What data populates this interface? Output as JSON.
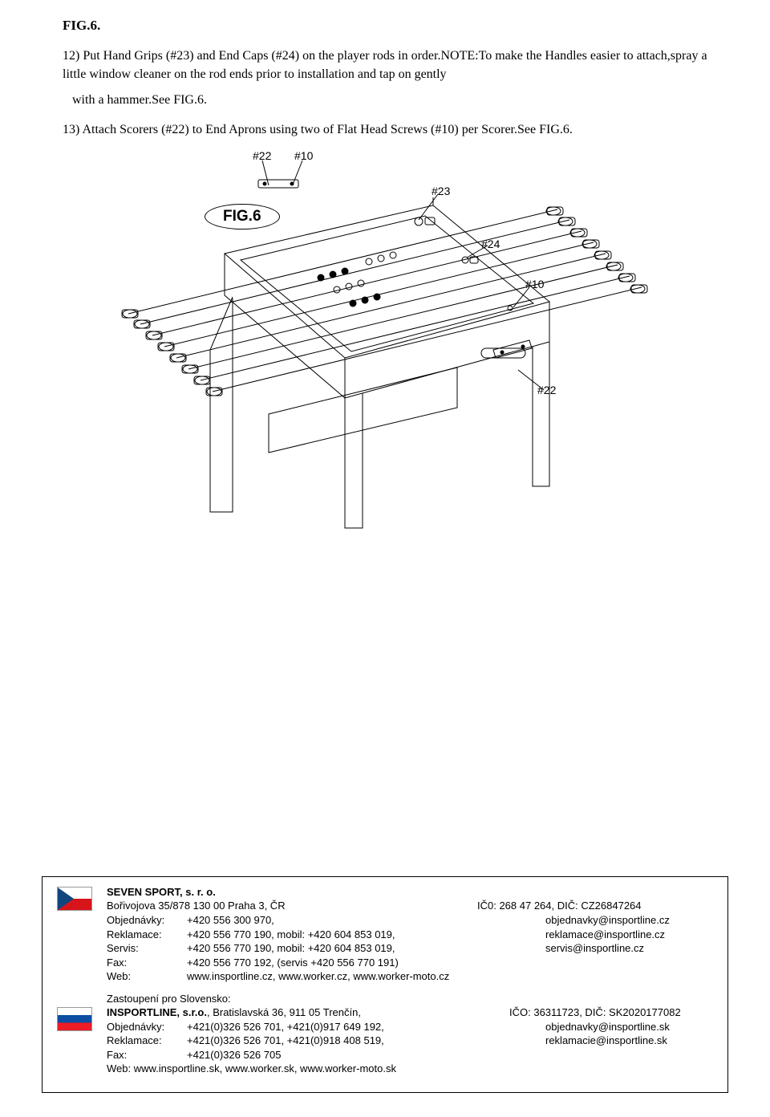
{
  "header": {
    "fig": "FIG.6."
  },
  "instructions": {
    "step12": "12) Put Hand Grips (#23) and End Caps (#24) on the player rods in order.NOTE:To make the Handles easier to attach,spray a little window cleaner on the rod ends prior to installation and tap on gently",
    "withHammer": "with a hammer.See FIG.6.",
    "step13": "13) Attach Scorers (#22) to End Aprons using two of Flat Head Screws (#10) per Scorer.See FIG.6."
  },
  "diagram": {
    "labels": {
      "l22a": "#22",
      "l10a": "#10",
      "l23": "#23",
      "fig6": "FIG.6",
      "l24": "#24",
      "l10b": "#10",
      "l22b": "#22"
    },
    "style": {
      "stroke": "#000000",
      "strokeWidth": 1,
      "fill": "none",
      "figBadgeBorder": "#000000",
      "labelFontSize": 14
    }
  },
  "contact": {
    "cz": {
      "company": "SEVEN SPORT, s. r. o.",
      "addr": "Bořivojova 35/878 130 00  Praha 3, ČR",
      "ico": "IČ0: 268 47 264, DIČ: CZ26847264",
      "rows": [
        {
          "lab": "Objednávky:",
          "mid": "+420 556 300 970,",
          "rgt": "objednavky@insportline.cz"
        },
        {
          "lab": "Reklamace:",
          "mid": "+420 556 770 190,  mobil: +420 604 853 019,",
          "rgt": "reklamace@insportline.cz"
        },
        {
          "lab": "Servis:",
          "mid": "+420 556 770 190,  mobil: +420 604 853 019,",
          "rgt": "servis@insportline.cz"
        },
        {
          "lab": "Fax:",
          "mid": "+420 556 770 192, (servis +420 556 770 191)",
          "rgt": ""
        },
        {
          "lab": "Web:",
          "mid": "www.insportline.cz, www.worker.cz, www.worker-moto.cz",
          "rgt": ""
        }
      ]
    },
    "sk": {
      "title": "Zastoupení pro Slovensko:",
      "company": "INSPORTLINE, s.r.o.",
      "addr": ", Bratislavská 36, 911 05  Trenčín,",
      "ico": "IČO: 36311723, DIČ: SK2020177082",
      "rows": [
        {
          "lab": "Objednávky:",
          "mid": "+421(0)326 526 701, +421(0)917 649 192,",
          "rgt": "objednavky@insportline.sk"
        },
        {
          "lab": "Reklamace:",
          "mid": "+421(0)326 526 701, +421(0)918 408 519,",
          "rgt": "reklamacie@insportline.sk"
        },
        {
          "lab": "Fax:",
          "mid": "+421(0)326 526 705",
          "rgt": ""
        }
      ],
      "web": "Web: www.insportline.sk, www.worker.sk, www.worker-moto.sk"
    }
  }
}
